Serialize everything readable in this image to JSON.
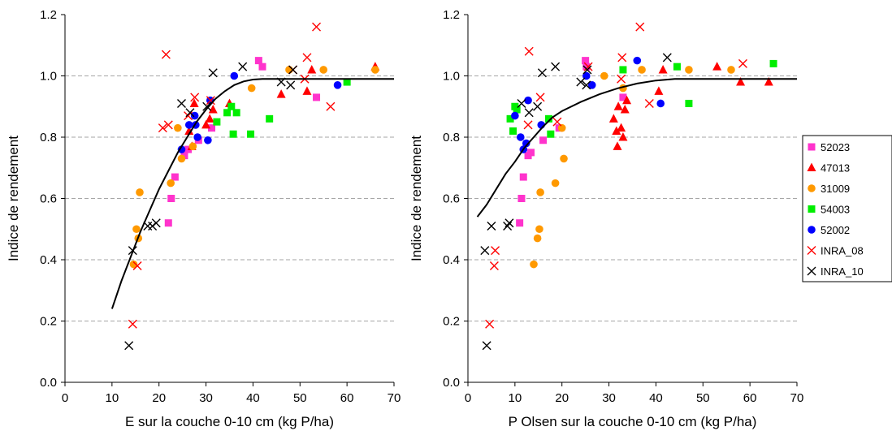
{
  "chart_data": [
    {
      "type": "scatter",
      "xlabel": "E sur la couche 0-10 cm (kg P/ha)",
      "ylabel": "Indice de rendement",
      "xlim": [
        0,
        70
      ],
      "ylim": [
        0,
        1.2
      ],
      "xticks": [
        "0",
        "10",
        "20",
        "30",
        "40",
        "50",
        "60",
        "70"
      ],
      "yticks": [
        "0.0",
        "0.2",
        "0.4",
        "0.6",
        "0.8",
        "1.0",
        "1.2"
      ],
      "grid": "horizontal dashed",
      "fit_curve": [
        [
          10,
          0.24
        ],
        [
          12,
          0.33
        ],
        [
          14,
          0.41
        ],
        [
          16,
          0.49
        ],
        [
          18,
          0.56
        ],
        [
          20,
          0.63
        ],
        [
          22,
          0.69
        ],
        [
          24,
          0.75
        ],
        [
          26,
          0.8
        ],
        [
          28,
          0.85
        ],
        [
          30,
          0.89
        ],
        [
          32,
          0.925
        ],
        [
          34,
          0.95
        ],
        [
          36,
          0.97
        ],
        [
          38,
          0.982
        ],
        [
          40,
          0.988
        ],
        [
          42,
          0.99
        ],
        [
          70,
          0.99
        ]
      ],
      "series": [
        {
          "name": "52023",
          "marker": "square",
          "color": "#ff33cc",
          "points": [
            [
              22,
              0.52
            ],
            [
              22.6,
              0.6
            ],
            [
              23.4,
              0.67
            ],
            [
              25.4,
              0.74
            ],
            [
              26.2,
              0.76
            ],
            [
              28.4,
              0.79
            ],
            [
              31.2,
              0.83
            ],
            [
              41.2,
              1.05
            ],
            [
              42,
              1.03
            ],
            [
              53.5,
              0.93
            ]
          ]
        },
        {
          "name": "47013",
          "marker": "triangle",
          "color": "#ff0000",
          "points": [
            [
              26.4,
              0.82
            ],
            [
              27,
              0.77
            ],
            [
              27.5,
              0.91
            ],
            [
              30,
              0.84
            ],
            [
              30.8,
              0.86
            ],
            [
              31.5,
              0.89
            ],
            [
              35,
              0.91
            ],
            [
              46,
              0.94
            ],
            [
              51.5,
              0.95
            ],
            [
              52.5,
              1.02
            ],
            [
              66,
              1.03
            ]
          ]
        },
        {
          "name": "31009",
          "marker": "circle",
          "color": "#ff9900",
          "points": [
            [
              14.6,
              0.385
            ],
            [
              15.2,
              0.5
            ],
            [
              15.6,
              0.47
            ],
            [
              15.9,
              0.62
            ],
            [
              22.5,
              0.65
            ],
            [
              24,
              0.83
            ],
            [
              24.8,
              0.73
            ],
            [
              27.2,
              0.77
            ],
            [
              39.7,
              0.96
            ],
            [
              47.7,
              1.02
            ],
            [
              55,
              1.02
            ],
            [
              66,
              1.02
            ]
          ]
        },
        {
          "name": "54003",
          "marker": "square",
          "color": "#00ee00",
          "points": [
            [
              32.3,
              0.85
            ],
            [
              34.5,
              0.88
            ],
            [
              35.4,
              0.9
            ],
            [
              35.8,
              0.81
            ],
            [
              36.5,
              0.88
            ],
            [
              39.5,
              0.81
            ],
            [
              43.5,
              0.86
            ],
            [
              60,
              0.98
            ]
          ]
        },
        {
          "name": "52002",
          "marker": "circle",
          "color": "#0000ff",
          "points": [
            [
              24.8,
              0.76
            ],
            [
              26.4,
              0.84
            ],
            [
              27.6,
              0.87
            ],
            [
              27.8,
              0.84
            ],
            [
              28.2,
              0.8
            ],
            [
              30.4,
              0.79
            ],
            [
              30.9,
              0.92
            ],
            [
              36,
              1
            ],
            [
              58,
              0.97
            ]
          ]
        },
        {
          "name": "INRA_08",
          "marker": "x",
          "color": "#ff0000",
          "points": [
            [
              14.4,
              0.19
            ],
            [
              15.4,
              0.38
            ],
            [
              20.8,
              0.83
            ],
            [
              21.5,
              1.07
            ],
            [
              22,
              0.84
            ],
            [
              26.2,
              0.87
            ],
            [
              27.6,
              0.93
            ],
            [
              31,
              0.92
            ],
            [
              48.5,
              1.02
            ],
            [
              51,
              0.99
            ],
            [
              51.5,
              1.06
            ],
            [
              53.5,
              1.16
            ],
            [
              56.5,
              0.9
            ]
          ]
        },
        {
          "name": "INRA_10",
          "marker": "x",
          "color": "#000000",
          "points": [
            [
              13.6,
              0.12
            ],
            [
              14.4,
              0.43
            ],
            [
              17.6,
              0.51
            ],
            [
              18.6,
              0.51
            ],
            [
              19.4,
              0.52
            ],
            [
              24.8,
              0.91
            ],
            [
              26.6,
              0.88
            ],
            [
              30.2,
              0.9
            ],
            [
              31.5,
              1.01
            ],
            [
              37.8,
              1.03
            ],
            [
              46,
              0.98
            ],
            [
              48,
              0.97
            ],
            [
              48.5,
              1.02
            ]
          ]
        }
      ]
    },
    {
      "type": "scatter",
      "xlabel": "P Olsen sur la couche 0-10 cm (kg P/ha)",
      "ylabel": "Indice de rendement",
      "xlim": [
        0,
        70
      ],
      "ylim": [
        0,
        1.2
      ],
      "xticks": [
        "0",
        "10",
        "20",
        "30",
        "40",
        "50",
        "60",
        "70"
      ],
      "yticks": [
        "0.0",
        "0.2",
        "0.4",
        "0.6",
        "0.8",
        "1.0",
        "1.2"
      ],
      "grid": "horizontal dashed",
      "fit_curve": [
        [
          2,
          0.54
        ],
        [
          4,
          0.58
        ],
        [
          6,
          0.63
        ],
        [
          8,
          0.68
        ],
        [
          10,
          0.72
        ],
        [
          12,
          0.765
        ],
        [
          14,
          0.8
        ],
        [
          16,
          0.835
        ],
        [
          18,
          0.865
        ],
        [
          20,
          0.885
        ],
        [
          24,
          0.915
        ],
        [
          28,
          0.94
        ],
        [
          32,
          0.96
        ],
        [
          36,
          0.975
        ],
        [
          40,
          0.985
        ],
        [
          44,
          0.99
        ],
        [
          70,
          0.99
        ]
      ],
      "series": [
        {
          "name": "52023",
          "marker": "square",
          "color": "#ff33cc",
          "points": [
            [
              11,
              0.52
            ],
            [
              11.4,
              0.6
            ],
            [
              11.8,
              0.67
            ],
            [
              12.8,
              0.74
            ],
            [
              13.4,
              0.75
            ],
            [
              16,
              0.79
            ],
            [
              19.4,
              0.83
            ],
            [
              25,
              1.05
            ],
            [
              25.2,
              1.03
            ],
            [
              33,
              0.93
            ]
          ]
        },
        {
          "name": "47013",
          "marker": "triangle",
          "color": "#ff0000",
          "points": [
            [
              31,
              0.86
            ],
            [
              31.6,
              0.82
            ],
            [
              31.8,
              0.77
            ],
            [
              32,
              0.9
            ],
            [
              32.6,
              0.83
            ],
            [
              33,
              0.8
            ],
            [
              33.4,
              0.89
            ],
            [
              33.8,
              0.92
            ],
            [
              40.6,
              0.95
            ],
            [
              41.5,
              1.02
            ],
            [
              53,
              1.03
            ],
            [
              58,
              0.98
            ],
            [
              64,
              0.98
            ]
          ]
        },
        {
          "name": "31009",
          "marker": "circle",
          "color": "#ff9900",
          "points": [
            [
              14,
              0.385
            ],
            [
              14.8,
              0.47
            ],
            [
              15.2,
              0.5
            ],
            [
              15.4,
              0.62
            ],
            [
              18.6,
              0.65
            ],
            [
              20,
              0.83
            ],
            [
              20.4,
              0.73
            ],
            [
              29,
              1
            ],
            [
              33,
              0.96
            ],
            [
              37,
              1.02
            ],
            [
              47,
              1.02
            ],
            [
              56,
              1.02
            ]
          ]
        },
        {
          "name": "54003",
          "marker": "square",
          "color": "#00ee00",
          "points": [
            [
              9,
              0.86
            ],
            [
              9.6,
              0.82
            ],
            [
              10,
              0.9
            ],
            [
              10.4,
              0.89
            ],
            [
              17.2,
              0.86
            ],
            [
              17.6,
              0.81
            ],
            [
              33,
              1.02
            ],
            [
              44.5,
              1.03
            ],
            [
              47,
              0.91
            ],
            [
              65,
              1.04
            ]
          ]
        },
        {
          "name": "52002",
          "marker": "circle",
          "color": "#0000ff",
          "points": [
            [
              10,
              0.87
            ],
            [
              11.2,
              0.8
            ],
            [
              11.8,
              0.76
            ],
            [
              12.4,
              0.78
            ],
            [
              12.8,
              0.92
            ],
            [
              15.6,
              0.84
            ],
            [
              25.2,
              1
            ],
            [
              26.4,
              0.97
            ],
            [
              36,
              1.05
            ],
            [
              41,
              0.91
            ]
          ]
        },
        {
          "name": "INRA_08",
          "marker": "x",
          "color": "#ff0000",
          "points": [
            [
              4.6,
              0.19
            ],
            [
              5.6,
              0.38
            ],
            [
              5.8,
              0.43
            ],
            [
              12.8,
              0.84
            ],
            [
              13,
              1.08
            ],
            [
              15.4,
              0.93
            ],
            [
              19,
              0.85
            ],
            [
              25.6,
              1.03
            ],
            [
              32.6,
              0.99
            ],
            [
              32.8,
              1.06
            ],
            [
              36.6,
              1.16
            ],
            [
              38.6,
              0.91
            ],
            [
              58.5,
              1.04
            ]
          ]
        },
        {
          "name": "INRA_10",
          "marker": "x",
          "color": "#000000",
          "points": [
            [
              4,
              0.12
            ],
            [
              3.6,
              0.43
            ],
            [
              5,
              0.51
            ],
            [
              8.4,
              0.51
            ],
            [
              8.8,
              0.52
            ],
            [
              11.4,
              0.91
            ],
            [
              13,
              0.88
            ],
            [
              14.8,
              0.9
            ],
            [
              15.8,
              1.01
            ],
            [
              18.6,
              1.03
            ],
            [
              24,
              0.98
            ],
            [
              25.2,
              0.97
            ],
            [
              25.4,
              1.02
            ],
            [
              42.4,
              1.06
            ]
          ]
        }
      ]
    }
  ],
  "legend": {
    "placement": "right",
    "items": [
      "52023",
      "47013",
      "31009",
      "54003",
      "52002",
      "INRA_08",
      "INRA_10"
    ]
  }
}
